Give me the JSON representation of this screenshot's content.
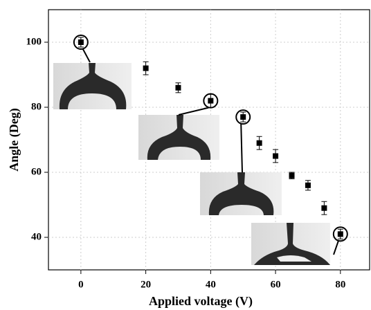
{
  "chart_data": {
    "type": "scatter",
    "x_label": "Applied voltage (V)",
    "y_label": "Angle (Deg)",
    "x": [
      0,
      20,
      30,
      40,
      50,
      55,
      60,
      65,
      70,
      75,
      80
    ],
    "values": [
      100,
      92,
      86,
      82,
      77,
      69,
      65,
      59,
      56,
      49,
      41
    ],
    "errors": [
      1.5,
      2,
      1.5,
      2,
      1.5,
      2,
      2,
      1,
      1.5,
      2,
      1.5
    ],
    "color": "#000000",
    "xlim": [
      -10,
      89
    ],
    "xticks": [
      0,
      20,
      40,
      60,
      80
    ],
    "ylim": [
      30,
      110
    ],
    "yticks": [
      40,
      60,
      80,
      100
    ]
  }
}
